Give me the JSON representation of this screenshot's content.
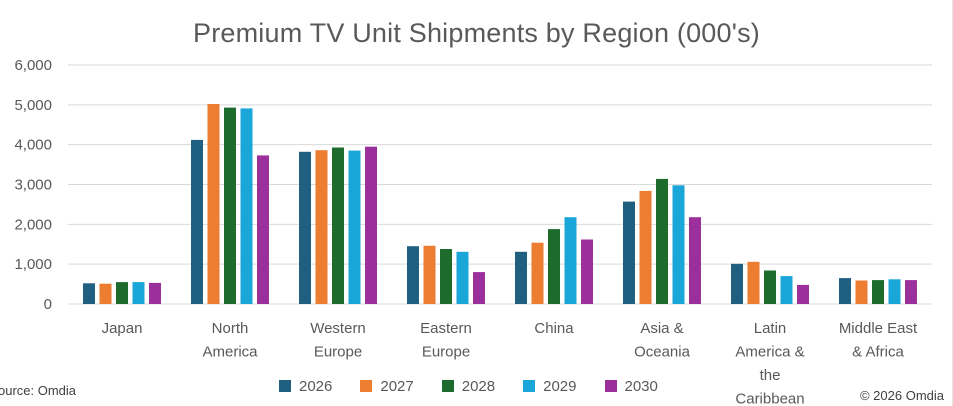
{
  "chart_data": {
    "type": "bar",
    "title": "Premium TV Unit Shipments by Region (000's)",
    "categories": [
      [
        "Japan"
      ],
      [
        "North",
        "America"
      ],
      [
        "Western",
        "Europe"
      ],
      [
        "Eastern",
        "Europe"
      ],
      [
        "China"
      ],
      [
        "Asia &",
        "Oceania"
      ],
      [
        "Latin",
        "America &",
        "the",
        "Caribbean"
      ],
      [
        "Middle East",
        "& Africa"
      ]
    ],
    "series": [
      {
        "name": "2026",
        "color": "#1f5f7f",
        "values": [
          520,
          4120,
          3820,
          1450,
          1310,
          2570,
          1010,
          650
        ]
      },
      {
        "name": "2027",
        "color": "#ed7d31",
        "values": [
          510,
          5020,
          3860,
          1460,
          1540,
          2840,
          1060,
          590
        ]
      },
      {
        "name": "2028",
        "color": "#1e6b2e",
        "values": [
          550,
          4930,
          3930,
          1380,
          1880,
          3140,
          840,
          600
        ]
      },
      {
        "name": "2029",
        "color": "#1aa6d9",
        "values": [
          550,
          4910,
          3850,
          1310,
          2180,
          2980,
          700,
          620
        ]
      },
      {
        "name": "2030",
        "color": "#9b2f9b",
        "values": [
          530,
          3730,
          3950,
          800,
          1620,
          2180,
          480,
          600
        ]
      }
    ],
    "ylim": [
      0,
      6000
    ],
    "yticks": [
      "0",
      "1,000",
      "2,000",
      "3,000",
      "4,000",
      "5,000",
      "6,000"
    ],
    "grid": true,
    "legend": "bottom"
  },
  "footer": {
    "source": "ource: Omdia",
    "copyright": "© 2026 Omdia"
  }
}
